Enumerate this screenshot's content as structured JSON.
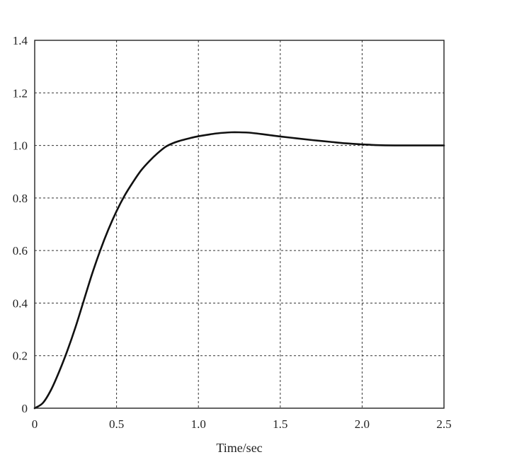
{
  "chart_data": {
    "type": "line",
    "title": "",
    "xlabel": "Time/sec",
    "ylabel": "",
    "xlim": [
      0,
      2.5
    ],
    "ylim": [
      0,
      1.4
    ],
    "grid": true,
    "x_ticks": [
      0,
      0.5,
      1.0,
      1.5,
      2.0,
      2.5
    ],
    "x_tick_labels": [
      "0",
      "0.5",
      "1.0",
      "1.5",
      "2.0",
      "2.5"
    ],
    "y_ticks": [
      0,
      0.2,
      0.4,
      0.6,
      0.8,
      1.0,
      1.2,
      1.4
    ],
    "y_tick_labels": [
      "0",
      "0.2",
      "0.4",
      "0.6",
      "0.8",
      "1.0",
      "1.2",
      "1.4"
    ],
    "series": [
      {
        "x": [
          0,
          0.05,
          0.1,
          0.15,
          0.2,
          0.25,
          0.3,
          0.35,
          0.4,
          0.45,
          0.5,
          0.55,
          0.6,
          0.65,
          0.7,
          0.75,
          0.8,
          0.85,
          0.9,
          0.95,
          1.0,
          1.05,
          1.1,
          1.15,
          1.2,
          1.25,
          1.3,
          1.35,
          1.4,
          1.45,
          1.5,
          1.6,
          1.7,
          1.8,
          1.9,
          2.0,
          2.1,
          2.2,
          2.3,
          2.4,
          2.5
        ],
        "y": [
          0,
          0.02,
          0.07,
          0.14,
          0.22,
          0.31,
          0.41,
          0.51,
          0.6,
          0.68,
          0.75,
          0.81,
          0.86,
          0.905,
          0.94,
          0.97,
          0.995,
          1.01,
          1.02,
          1.028,
          1.035,
          1.04,
          1.045,
          1.048,
          1.05,
          1.05,
          1.049,
          1.046,
          1.042,
          1.038,
          1.034,
          1.027,
          1.02,
          1.014,
          1.008,
          1.004,
          1.001,
          1.0,
          1.0,
          1.0,
          1.0
        ]
      }
    ]
  }
}
